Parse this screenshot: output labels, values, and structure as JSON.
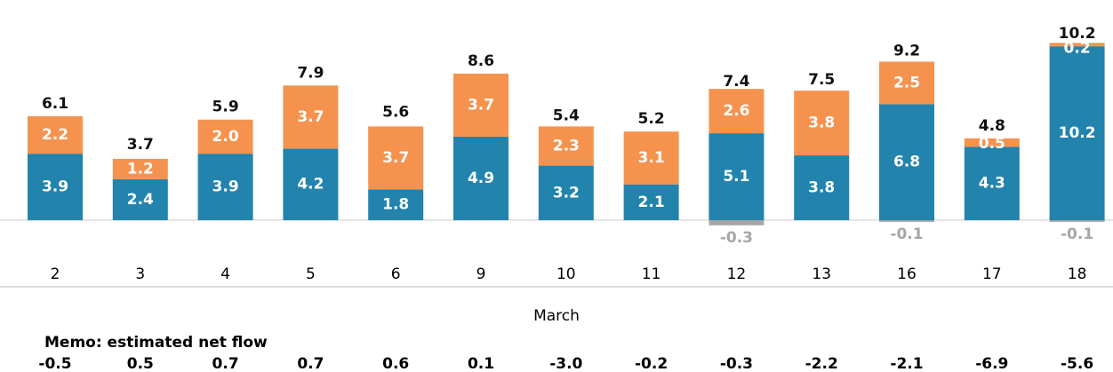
{
  "chart_data": {
    "type": "bar",
    "categories": [
      "2",
      "3",
      "4",
      "5",
      "6",
      "9",
      "10",
      "11",
      "12",
      "13",
      "16",
      "17",
      "18"
    ],
    "x_label": "March",
    "series": [
      {
        "color": "#2283ad",
        "values": [
          3.9,
          2.4,
          3.9,
          4.2,
          1.8,
          4.9,
          3.2,
          2.1,
          5.1,
          3.8,
          6.8,
          4.3,
          10.2
        ],
        "value_labels": [
          "3.9",
          "2.4",
          "3.9",
          "4.2",
          "1.8",
          "4.9",
          "3.2",
          "2.1",
          "5.1",
          "3.8",
          "6.8",
          "4.3",
          "10.2"
        ]
      },
      {
        "color": "#f5934e",
        "values": [
          2.2,
          1.2,
          2.0,
          3.7,
          3.7,
          3.7,
          2.3,
          3.1,
          2.6,
          3.8,
          2.5,
          0.5,
          0.2
        ],
        "value_labels": [
          "2.2",
          "1.2",
          "2.0",
          "3.7",
          "3.7",
          "3.7",
          "2.3",
          "3.1",
          "2.6",
          "3.8",
          "2.5",
          "0.5",
          "0.2"
        ]
      },
      {
        "color": "#a6a6a6",
        "values": [
          null,
          null,
          null,
          null,
          null,
          null,
          null,
          null,
          -0.3,
          null,
          -0.1,
          null,
          -0.1
        ],
        "value_labels": [
          null,
          null,
          null,
          null,
          null,
          null,
          null,
          null,
          "-0.3",
          null,
          "-0.1",
          null,
          "-0.1"
        ]
      }
    ],
    "totals": {
      "values": [
        6.1,
        3.7,
        5.9,
        7.9,
        5.6,
        8.6,
        5.4,
        5.2,
        7.4,
        7.5,
        9.2,
        4.8,
        10.2
      ],
      "value_labels": [
        "6.1",
        "3.7",
        "5.9",
        "7.9",
        "5.6",
        "8.6",
        "5.4",
        "5.2",
        "7.4",
        "7.5",
        "9.2",
        "4.8",
        "10.2"
      ]
    },
    "memo": {
      "title": "Memo: estimated net flow",
      "values": [
        -0.5,
        0.5,
        0.7,
        0.7,
        0.6,
        0.1,
        -3.0,
        -0.2,
        -0.3,
        -2.2,
        -2.1,
        -6.9,
        -5.6
      ],
      "value_labels": [
        "-0.5",
        "0.5",
        "0.7",
        "0.7",
        "0.6",
        "0.1",
        "-3.0",
        "-0.2",
        "-0.3",
        "-2.2",
        "-2.1",
        "-6.9",
        "-5.6"
      ]
    },
    "ylim": [
      -0.5,
      10.5
    ]
  }
}
